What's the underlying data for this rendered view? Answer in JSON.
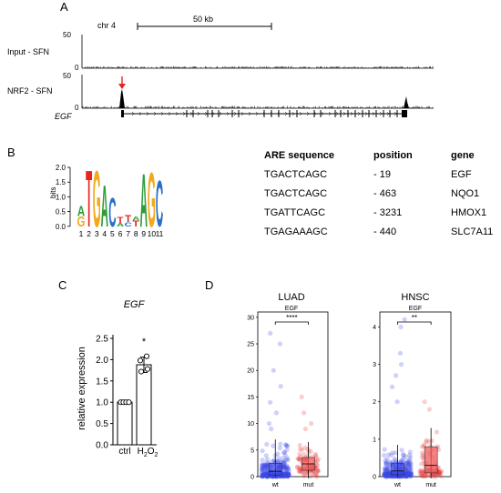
{
  "panels": {
    "A": {
      "letter": "A",
      "chrom_label": "chr 4",
      "scale_label": "50 kb",
      "tracks": [
        {
          "label": "Input - SFN",
          "ymax": "50",
          "ymin": "0"
        },
        {
          "label": "NRF2 - SFN",
          "ymax": "50",
          "ymin": "0"
        }
      ],
      "gene_label": "EGF",
      "arrow_color": "#e8231f"
    },
    "B": {
      "letter": "B",
      "logo": {
        "y_axis_label": "bits",
        "y_ticks": [
          "2.0",
          "1.5",
          "1.0",
          "0.5",
          "0.0"
        ],
        "positions": [
          "1",
          "2",
          "3",
          "4",
          "5",
          "6",
          "7",
          "8",
          "9",
          "10",
          "11"
        ]
      },
      "table": {
        "headers": [
          "ARE sequence",
          "position",
          "gene"
        ],
        "rows": [
          [
            "TGACTCAGC",
            "- 19",
            "EGF"
          ],
          [
            "TGACTCAGC",
            "- 463",
            "NQO1"
          ],
          [
            "TGATTCAGC",
            "- 3231",
            "HMOX1"
          ],
          [
            "TGAGAAAGC",
            "- 440",
            "SLC7A11"
          ]
        ]
      }
    },
    "C": {
      "letter": "C",
      "title": "EGF",
      "ylabel": "relative expression",
      "significance": "*"
    },
    "D": {
      "letter": "D",
      "plots": [
        {
          "title": "LUAD",
          "subtitle": "EGF",
          "significance": "****",
          "y_ticks": [
            "30",
            "25",
            "20",
            "15",
            "10",
            "5",
            "0"
          ],
          "x_ticks": [
            "wt",
            "mut"
          ]
        },
        {
          "title": "HNSC",
          "subtitle": "EGF",
          "significance": "**",
          "y_ticks": [
            "4",
            "3",
            "2",
            "1",
            "0"
          ],
          "x_ticks": [
            "wt",
            "mut"
          ]
        }
      ],
      "colors": {
        "wt": "#3b48e8",
        "mut": "#e83b3b",
        "box": "#f05a5a"
      }
    }
  },
  "chart_data": [
    {
      "type": "bar",
      "title": "EGF",
      "xlabel": "",
      "ylabel": "relative expression",
      "categories": [
        "ctrl",
        "H2O2"
      ],
      "values": [
        1.0,
        1.88
      ],
      "errors": [
        0.02,
        0.18
      ],
      "points": [
        [
          1.0,
          1.0,
          1.0,
          1.0
        ],
        [
          1.72,
          1.98,
          2.08,
          1.78
        ]
      ],
      "y_ticks": [
        "0.0",
        "0.5",
        "1.0",
        "1.5",
        "2.0",
        "2.5"
      ],
      "ylim": [
        0,
        2.5
      ],
      "grid": false
    },
    {
      "type": "scatter",
      "title": "LUAD",
      "subtitle": "EGF",
      "categories": [
        "wt",
        "mut"
      ],
      "ylim": [
        0,
        31
      ],
      "boxes": [
        {
          "group": "wt",
          "median": 1.0,
          "q1": 0.3,
          "q3": 2.5,
          "whisker_high": 7
        },
        {
          "group": "mut",
          "median": 2.4,
          "q1": 1.2,
          "q3": 3.6,
          "whisker_high": 6.5
        }
      ],
      "outliers": {
        "wt": [
          27,
          25,
          20,
          17,
          14,
          12,
          10,
          9
        ],
        "mut": [
          15,
          12,
          10,
          9
        ]
      }
    },
    {
      "type": "scatter",
      "title": "HNSC",
      "subtitle": "EGF",
      "categories": [
        "wt",
        "mut"
      ],
      "ylim": [
        0,
        4.4
      ],
      "boxes": [
        {
          "group": "wt",
          "median": 0.15,
          "q1": 0.05,
          "q3": 0.35,
          "whisker_high": 0.85
        },
        {
          "group": "mut",
          "median": 0.3,
          "q1": 0.1,
          "q3": 0.8,
          "whisker_high": 1.3
        }
      ],
      "outliers": {
        "wt": [
          4.2,
          4.0,
          3.3,
          3.0,
          2.7,
          2.4,
          2.0
        ],
        "mut": [
          2.0,
          1.8
        ]
      }
    }
  ]
}
